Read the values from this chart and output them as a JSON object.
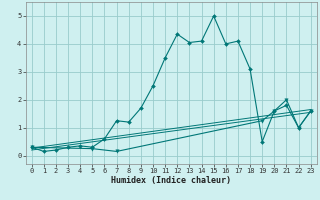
{
  "title": "",
  "xlabel": "Humidex (Indice chaleur)",
  "bg_color": "#cff0f0",
  "grid_color": "#99cccc",
  "line_color": "#007777",
  "xlim": [
    -0.5,
    23.5
  ],
  "ylim": [
    -0.3,
    5.5
  ],
  "xticks": [
    0,
    1,
    2,
    3,
    4,
    5,
    6,
    7,
    8,
    9,
    10,
    11,
    12,
    13,
    14,
    15,
    16,
    17,
    18,
    19,
    20,
    21,
    22,
    23
  ],
  "yticks": [
    0,
    1,
    2,
    3,
    4,
    5
  ],
  "main_x": [
    0,
    1,
    2,
    3,
    4,
    5,
    6,
    7,
    8,
    9,
    10,
    11,
    12,
    13,
    14,
    15,
    16,
    17,
    18,
    19,
    20,
    21,
    22,
    23
  ],
  "main_y": [
    0.3,
    0.15,
    0.2,
    0.3,
    0.35,
    0.3,
    0.6,
    1.25,
    1.2,
    1.7,
    2.5,
    3.5,
    4.35,
    4.05,
    4.1,
    5.0,
    4.0,
    4.1,
    3.1,
    0.5,
    1.6,
    1.8,
    1.0,
    1.6
  ],
  "line2_x": [
    0,
    23
  ],
  "line2_y": [
    0.2,
    1.55
  ],
  "line3_x": [
    0,
    23
  ],
  "line3_y": [
    0.27,
    1.65
  ],
  "zigzag_x": [
    0,
    5,
    7,
    19,
    20,
    21,
    22,
    23
  ],
  "zigzag_y": [
    0.3,
    0.25,
    0.15,
    1.25,
    1.6,
    2.0,
    1.0,
    1.6
  ]
}
